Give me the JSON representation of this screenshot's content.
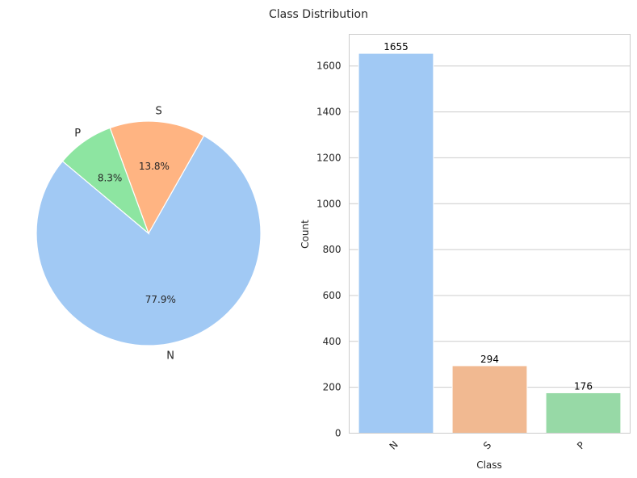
{
  "figure": {
    "suptitle": "Class Distribution"
  },
  "chart_data": [
    {
      "type": "pie",
      "categories": [
        "N",
        "S",
        "P"
      ],
      "values": [
        77.9,
        13.8,
        8.3
      ],
      "value_labels": [
        "77.9%",
        "13.8%",
        "8.3%"
      ],
      "colors": [
        "#a1c9f4",
        "#ffb482",
        "#8de5a1"
      ],
      "start_angle_deg": 140,
      "direction": "counterclockwise"
    },
    {
      "type": "bar",
      "categories": [
        "N",
        "S",
        "P"
      ],
      "values": [
        1655,
        294,
        176
      ],
      "value_labels": [
        "1655",
        "294",
        "176"
      ],
      "colors": [
        "#a1c9f4",
        "#f1b991",
        "#97d9a6"
      ],
      "xlabel": "Class",
      "ylabel": "Count",
      "ylim": [
        0,
        1738
      ],
      "yticks": [
        0,
        200,
        400,
        600,
        800,
        1000,
        1200,
        1400,
        1600
      ],
      "ytick_labels": [
        "0",
        "200",
        "400",
        "600",
        "800",
        "1000",
        "1200",
        "1400",
        "1600"
      ],
      "grid": "y"
    }
  ]
}
